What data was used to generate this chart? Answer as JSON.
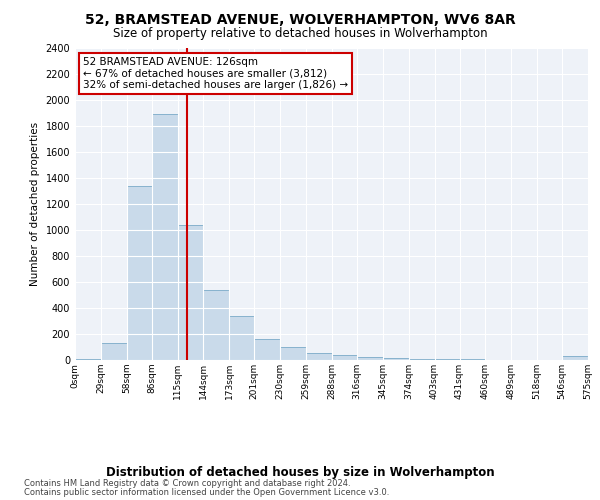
{
  "title": "52, BRAMSTEAD AVENUE, WOLVERHAMPTON, WV6 8AR",
  "subtitle": "Size of property relative to detached houses in Wolverhampton",
  "xlabel": "Distribution of detached houses by size in Wolverhampton",
  "ylabel": "Number of detached properties",
  "footer_line1": "Contains HM Land Registry data © Crown copyright and database right 2024.",
  "footer_line2": "Contains public sector information licensed under the Open Government Licence v3.0.",
  "annotation_line1": "52 BRAMSTEAD AVENUE: 126sqm",
  "annotation_line2": "← 67% of detached houses are smaller (3,812)",
  "annotation_line3": "32% of semi-detached houses are larger (1,826) →",
  "property_size": 126,
  "bin_edges": [
    0,
    29,
    58,
    86,
    115,
    144,
    173,
    201,
    230,
    259,
    288,
    316,
    345,
    374,
    403,
    431,
    460,
    489,
    518,
    546,
    575
  ],
  "bar_values": [
    10,
    130,
    1340,
    1890,
    1040,
    540,
    340,
    160,
    100,
    50,
    35,
    25,
    15,
    8,
    5,
    5,
    3,
    2,
    2,
    30
  ],
  "bar_color": "#c9daea",
  "bar_edge_color": "#7aaac8",
  "red_line_color": "#cc0000",
  "annotation_box_color": "#cc0000",
  "background_color": "#eef2f8",
  "grid_color": "#ffffff",
  "fig_background": "#ffffff",
  "ylim": [
    0,
    2400
  ],
  "yticks": [
    0,
    200,
    400,
    600,
    800,
    1000,
    1200,
    1400,
    1600,
    1800,
    2000,
    2200,
    2400
  ],
  "title_fontsize": 10,
  "subtitle_fontsize": 8.5,
  "ylabel_fontsize": 7.5,
  "xlabel_fontsize": 8.5,
  "tick_fontsize": 7,
  "xtick_fontsize": 6.5,
  "annotation_fontsize": 7.5,
  "footer_fontsize": 6.0
}
